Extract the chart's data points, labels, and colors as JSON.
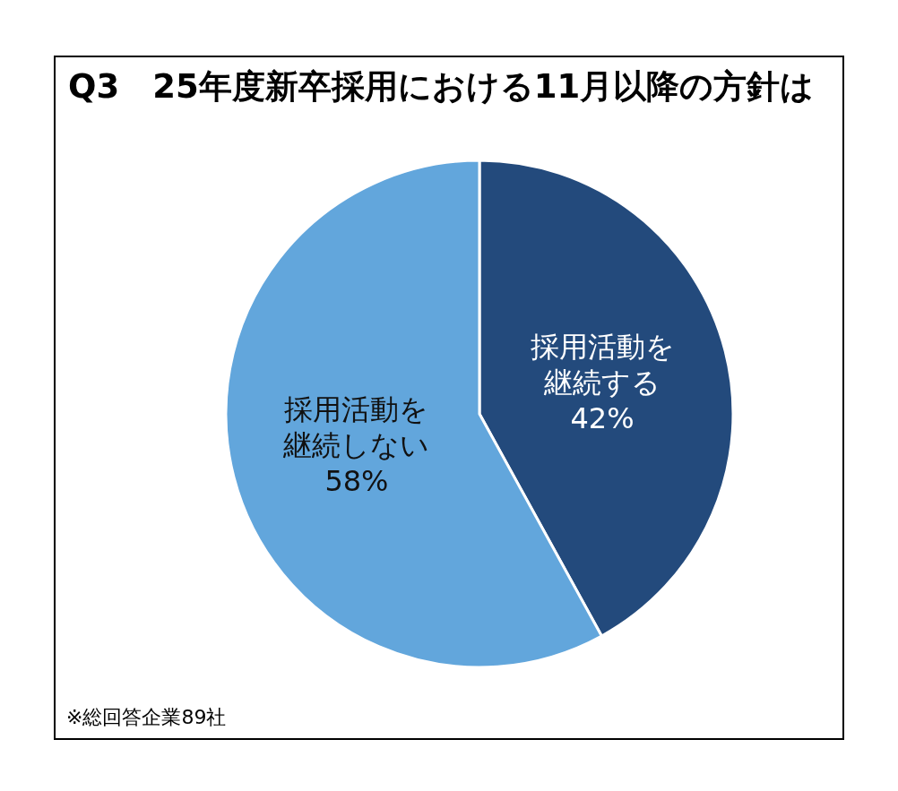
{
  "chart_data": {
    "type": "pie",
    "title": "Q3　25年度新卒採用における11月以降の方針は",
    "categories": [
      "採用活動を継続する",
      "採用活動を継続しない"
    ],
    "values": [
      42,
      58
    ],
    "colors": [
      "#234a7c",
      "#62a6dc"
    ],
    "value_labels": [
      "42%",
      "58%"
    ],
    "annotations": [
      "※総回答企業89社"
    ]
  }
}
